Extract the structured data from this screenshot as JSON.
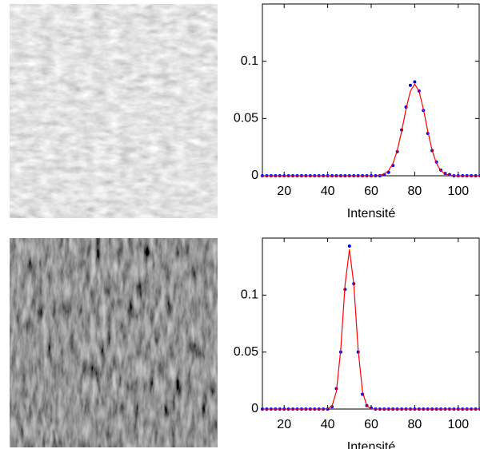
{
  "chart_data": [
    {
      "type": "scatter",
      "xlabel": "Intensité",
      "x": [
        10,
        12,
        14,
        16,
        18,
        20,
        22,
        24,
        26,
        28,
        30,
        32,
        34,
        36,
        38,
        40,
        42,
        44,
        46,
        48,
        50,
        52,
        54,
        56,
        58,
        60,
        62,
        64,
        66,
        68,
        70,
        72,
        74,
        76,
        78,
        80,
        82,
        84,
        86,
        88,
        90,
        92,
        94,
        96,
        98,
        100,
        102,
        104,
        106,
        108,
        110
      ],
      "series": [
        {
          "color": "#0000ff",
          "marker": "dot",
          "values": [
            0,
            0,
            0,
            0,
            0,
            0,
            0,
            0,
            0,
            0,
            0,
            0,
            0,
            0,
            0,
            0,
            0,
            0,
            0,
            0,
            0,
            0,
            0,
            0,
            0,
            0,
            0,
            0,
            0.001,
            0.003,
            0.009,
            0.021,
            0.04,
            0.06,
            0.079,
            0.082,
            0.074,
            0.057,
            0.037,
            0.022,
            0.012,
            0.005,
            0.002,
            0.001,
            0,
            0,
            0,
            0,
            0,
            0,
            0
          ]
        },
        {
          "color": "#ff0000",
          "marker": "none",
          "values": [
            0,
            0,
            0,
            0,
            0,
            0,
            0,
            0,
            0,
            0,
            0,
            0,
            0,
            0,
            0,
            0,
            0,
            0,
            0,
            0,
            0,
            0,
            0,
            0,
            0,
            0,
            0.0001,
            0.0005,
            0.0016,
            0.0045,
            0.0108,
            0.0222,
            0.039,
            0.0581,
            0.0738,
            0.08,
            0.0738,
            0.0581,
            0.039,
            0.0222,
            0.0108,
            0.0045,
            0.0016,
            0.0005,
            0.0001,
            0,
            0,
            0,
            0,
            0,
            0
          ]
        }
      ],
      "xlim": [
        10,
        110
      ],
      "xticks": [
        20,
        40,
        60,
        80,
        100
      ],
      "ylim": [
        0,
        0.15
      ],
      "yticks": [
        0,
        0.05,
        0.1
      ]
    },
    {
      "type": "scatter",
      "xlabel": "Intensité",
      "x": [
        10,
        12,
        14,
        16,
        18,
        20,
        22,
        24,
        26,
        28,
        30,
        32,
        34,
        36,
        38,
        40,
        42,
        44,
        46,
        48,
        50,
        52,
        54,
        56,
        58,
        60,
        62,
        64,
        66,
        68,
        70,
        72,
        74,
        76,
        78,
        80,
        82,
        84,
        86,
        88,
        90,
        92,
        94,
        96,
        98,
        100,
        102,
        104,
        106,
        108,
        110
      ],
      "series": [
        {
          "color": "#0000ff",
          "marker": "dot",
          "values": [
            0,
            0,
            0,
            0,
            0,
            0,
            0,
            0,
            0,
            0,
            0,
            0,
            0,
            0,
            0,
            0,
            0.002,
            0.018,
            0.05,
            0.105,
            0.143,
            0.11,
            0.05,
            0.013,
            0.003,
            0.001,
            0,
            0,
            0,
            0,
            0,
            0,
            0,
            0,
            0,
            0,
            0,
            0,
            0,
            0,
            0,
            0,
            0,
            0,
            0,
            0,
            0,
            0,
            0,
            0,
            0
          ]
        },
        {
          "color": "#ff0000",
          "marker": "none",
          "values": [
            0,
            0,
            0,
            0,
            0,
            0,
            0,
            0,
            0,
            0,
            0,
            0,
            0,
            0,
            0,
            0.0003,
            0.0027,
            0.0153,
            0.0523,
            0.1095,
            0.14,
            0.1095,
            0.0523,
            0.0153,
            0.0027,
            0.0003,
            0,
            0,
            0,
            0,
            0,
            0,
            0,
            0,
            0,
            0,
            0,
            0,
            0,
            0,
            0,
            0,
            0,
            0,
            0,
            0,
            0,
            0,
            0,
            0,
            0
          ]
        }
      ],
      "xlim": [
        10,
        110
      ],
      "xticks": [
        20,
        40,
        60,
        80,
        100
      ],
      "ylim": [
        0,
        0.15
      ],
      "yticks": [
        0,
        0.05,
        0.1
      ]
    }
  ]
}
